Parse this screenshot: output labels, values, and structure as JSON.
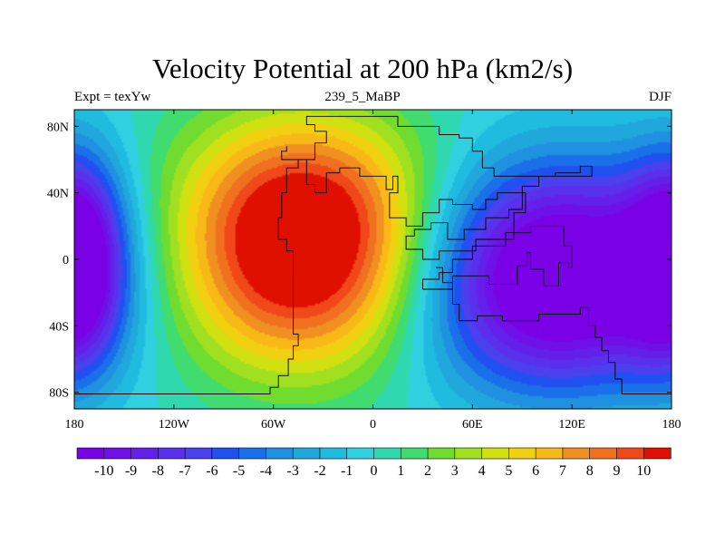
{
  "title": "Velocity Potential at 200 hPa (km2/s)",
  "subtitle_left": "Expt = texYw",
  "subtitle_center": "239_5_MaBP",
  "subtitle_right": "DJF",
  "map": {
    "lon_range": [
      -180,
      180
    ],
    "lat_range": [
      -90,
      90
    ],
    "lon_ticks": [
      {
        "value": -180,
        "label": "180"
      },
      {
        "value": -120,
        "label": "120W"
      },
      {
        "value": -60,
        "label": "60W"
      },
      {
        "value": 0,
        "label": "0"
      },
      {
        "value": 60,
        "label": "60E"
      },
      {
        "value": 120,
        "label": "120E"
      },
      {
        "value": 180,
        "label": "180"
      }
    ],
    "lat_ticks": [
      {
        "value": 80,
        "label": "80N"
      },
      {
        "value": 40,
        "label": "40N"
      },
      {
        "value": 0,
        "label": "0"
      },
      {
        "value": -40,
        "label": "40S"
      },
      {
        "value": -80,
        "label": "80S"
      }
    ],
    "field_centers": [
      {
        "name": "max",
        "lon": -40,
        "lat": 12,
        "value": 10
      },
      {
        "name": "min",
        "lon": 110,
        "lat": -12,
        "value": -10
      }
    ],
    "coastline": [
      [
        -180,
        -81
      ],
      [
        -62,
        -81
      ],
      [
        -62,
        -77
      ],
      [
        -57,
        -77
      ],
      [
        -57,
        -70
      ],
      [
        -51,
        -70
      ],
      [
        -51,
        -60
      ],
      [
        -48,
        -60
      ],
      [
        -48,
        -52
      ],
      [
        -45,
        -52
      ],
      [
        -45,
        -45
      ],
      [
        -48,
        -45
      ],
      [
        -48,
        5
      ],
      [
        -52,
        5
      ],
      [
        -52,
        12
      ],
      [
        -57,
        12
      ],
      [
        -57,
        25
      ],
      [
        -55,
        25
      ],
      [
        -55,
        40
      ],
      [
        -52,
        40
      ],
      [
        -52,
        55
      ],
      [
        -45,
        55
      ],
      [
        -45,
        60
      ],
      [
        -40,
        60
      ],
      [
        -40,
        45
      ],
      [
        -35,
        45
      ],
      [
        -35,
        40
      ],
      [
        -28,
        40
      ],
      [
        -28,
        52
      ],
      [
        -20,
        52
      ],
      [
        -20,
        55
      ],
      [
        -8,
        55
      ],
      [
        -8,
        50
      ],
      [
        8,
        50
      ],
      [
        8,
        42
      ],
      [
        12,
        42
      ],
      [
        12,
        50
      ],
      [
        15,
        50
      ],
      [
        15,
        40
      ],
      [
        10,
        40
      ],
      [
        10,
        25
      ],
      [
        20,
        25
      ],
      [
        20,
        20
      ],
      [
        30,
        20
      ],
      [
        30,
        28
      ],
      [
        40,
        28
      ],
      [
        40,
        36
      ],
      [
        48,
        36
      ],
      [
        48,
        33
      ],
      [
        60,
        33
      ],
      [
        60,
        30
      ],
      [
        68,
        30
      ],
      [
        68,
        36
      ],
      [
        75,
        36
      ],
      [
        75,
        40
      ],
      [
        92,
        40
      ],
      [
        92,
        28
      ],
      [
        85,
        28
      ],
      [
        85,
        12
      ],
      [
        62,
        12
      ],
      [
        62,
        5
      ],
      [
        40,
        5
      ],
      [
        40,
        0
      ],
      [
        30,
        0
      ],
      [
        30,
        6
      ],
      [
        20,
        6
      ],
      [
        20,
        14
      ],
      [
        25,
        14
      ],
      [
        25,
        18
      ],
      [
        35,
        18
      ],
      [
        35,
        22
      ],
      [
        45,
        22
      ],
      [
        45,
        12
      ],
      [
        55,
        12
      ],
      [
        55,
        18
      ],
      [
        68,
        18
      ],
      [
        68,
        25
      ],
      [
        82,
        25
      ],
      [
        82,
        30
      ],
      [
        90,
        30
      ],
      [
        90,
        44
      ],
      [
        100,
        44
      ],
      [
        100,
        50
      ],
      [
        110,
        50
      ],
      [
        110,
        52
      ],
      [
        125,
        52
      ],
      [
        125,
        56
      ],
      [
        132,
        56
      ],
      [
        132,
        50
      ],
      [
        73,
        50
      ],
      [
        73,
        55
      ],
      [
        66,
        55
      ],
      [
        66,
        65
      ],
      [
        60,
        65
      ],
      [
        60,
        73
      ],
      [
        52,
        73
      ],
      [
        52,
        75
      ],
      [
        40,
        75
      ],
      [
        40,
        80
      ],
      [
        15,
        80
      ],
      [
        15,
        86
      ],
      [
        -40,
        86
      ],
      [
        -40,
        81
      ],
      [
        -35,
        81
      ],
      [
        -35,
        77
      ],
      [
        -28,
        77
      ],
      [
        -28,
        70
      ],
      [
        -35,
        70
      ],
      [
        -35,
        60
      ],
      [
        -55,
        60
      ],
      [
        -55,
        65
      ],
      [
        -52,
        65
      ],
      [
        -52,
        68
      ]
    ],
    "coast_south": [
      [
        38,
        -5
      ],
      [
        42,
        -5
      ],
      [
        42,
        -14
      ],
      [
        48,
        -14
      ],
      [
        48,
        -27
      ],
      [
        52,
        -27
      ],
      [
        52,
        -37
      ],
      [
        63,
        -37
      ],
      [
        63,
        -34
      ],
      [
        78,
        -34
      ],
      [
        78,
        -37
      ],
      [
        100,
        -37
      ],
      [
        100,
        -33
      ],
      [
        125,
        -33
      ],
      [
        125,
        -29
      ],
      [
        130,
        -29
      ],
      [
        130,
        -40
      ],
      [
        134,
        -40
      ],
      [
        134,
        -47
      ],
      [
        138,
        -47
      ],
      [
        138,
        -55
      ],
      [
        142,
        -55
      ],
      [
        142,
        -62
      ],
      [
        146,
        -62
      ],
      [
        146,
        -72
      ],
      [
        150,
        -72
      ],
      [
        150,
        -81
      ],
      [
        180,
        -81
      ]
    ],
    "coast_australia": [
      [
        30,
        -18
      ],
      [
        48,
        -18
      ],
      [
        48,
        -10
      ],
      [
        70,
        -10
      ],
      [
        70,
        -15
      ],
      [
        87,
        -15
      ],
      [
        87,
        -4
      ],
      [
        93,
        -4
      ],
      [
        93,
        4
      ],
      [
        95,
        4
      ],
      [
        95,
        -6
      ],
      [
        103,
        -6
      ],
      [
        103,
        -16
      ],
      [
        112,
        -16
      ],
      [
        112,
        -2
      ],
      [
        118,
        -2
      ],
      [
        118,
        -5
      ],
      [
        120,
        -5
      ],
      [
        120,
        8
      ],
      [
        115,
        8
      ],
      [
        115,
        20
      ],
      [
        95,
        20
      ],
      [
        95,
        16
      ],
      [
        80,
        16
      ],
      [
        80,
        8
      ],
      [
        60,
        8
      ],
      [
        60,
        0
      ],
      [
        48,
        0
      ],
      [
        48,
        -8
      ],
      [
        40,
        -8
      ],
      [
        40,
        -12
      ],
      [
        30,
        -12
      ],
      [
        30,
        -18
      ]
    ]
  },
  "colorbar": {
    "labels": [
      "-10",
      "-9",
      "-8",
      "-7",
      "-6",
      "-5",
      "-4",
      "-3",
      "-2",
      "-1",
      "0",
      "1",
      "2",
      "3",
      "4",
      "5",
      "6",
      "7",
      "8",
      "9",
      "10"
    ],
    "colors": [
      "#7a00e6",
      "#7010e8",
      "#6420ea",
      "#5a30ec",
      "#4a40ee",
      "#2050f0",
      "#1a70e8",
      "#2090e0",
      "#20a8dc",
      "#20bce0",
      "#30d0e0",
      "#30d8b0",
      "#40dc70",
      "#70dc30",
      "#a0e020",
      "#d0e010",
      "#f0d010",
      "#f8b818",
      "#f09020",
      "#f07020",
      "#f04818",
      "#e01000"
    ]
  }
}
